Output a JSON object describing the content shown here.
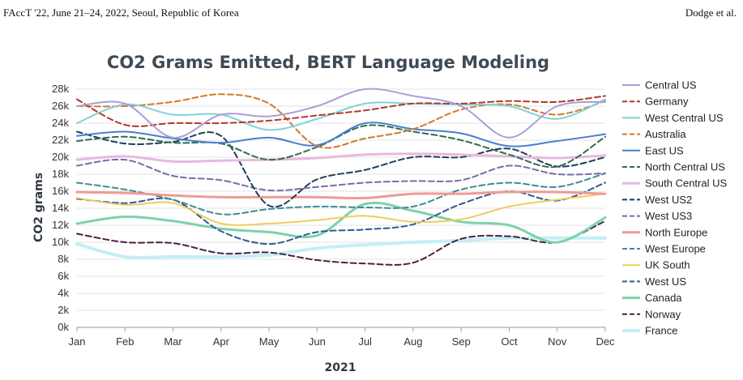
{
  "header": {
    "left": "FAccT '22, June 21–24, 2022, Seoul, Republic of Korea",
    "right": "Dodge et al."
  },
  "chart_data": {
    "type": "line",
    "title": "CO2 Grams Emitted, BERT Language Modeling",
    "xlabel": "2021",
    "ylabel": "CO2 grams",
    "categories": [
      "Jan",
      "Feb",
      "Mar",
      "Apr",
      "May",
      "Jun",
      "Jul",
      "Aug",
      "Sep",
      "Oct",
      "Nov",
      "Dec"
    ],
    "ylim": [
      0,
      28000
    ],
    "yticks": [
      0,
      2000,
      4000,
      6000,
      8000,
      10000,
      12000,
      14000,
      16000,
      18000,
      20000,
      22000,
      24000,
      26000,
      28000
    ],
    "ytick_labels": [
      "0k",
      "2k",
      "4k",
      "6k",
      "8k",
      "10k",
      "12k",
      "14k",
      "16k",
      "18k",
      "20k",
      "22k",
      "24k",
      "26k",
      "28k"
    ],
    "grid": true,
    "legend_position": "right",
    "series": [
      {
        "name": "Central US",
        "color": "#a99fd6",
        "dash": false,
        "width": 2,
        "values": [
          26000,
          26300,
          22300,
          25000,
          24800,
          26000,
          28000,
          27200,
          26000,
          22300,
          26000,
          26500
        ]
      },
      {
        "name": "Germany",
        "color": "#b03a2e",
        "dash": true,
        "width": 2,
        "values": [
          26800,
          23800,
          24000,
          24000,
          24300,
          24900,
          25500,
          26300,
          26300,
          26600,
          26500,
          27200
        ]
      },
      {
        "name": "West Central US",
        "color": "#7fd3d9",
        "dash": false,
        "width": 2,
        "values": [
          24000,
          26200,
          25000,
          25000,
          23200,
          24500,
          26300,
          26300,
          26200,
          26000,
          24500,
          26800
        ]
      },
      {
        "name": "Australia",
        "color": "#cf7a2d",
        "dash": true,
        "width": 2,
        "values": [
          26000,
          26000,
          26500,
          27400,
          26300,
          21300,
          22200,
          23300,
          25600,
          26200,
          25000,
          26600
        ]
      },
      {
        "name": "East US",
        "color": "#4a7fd1",
        "dash": false,
        "width": 2,
        "values": [
          22500,
          23000,
          22200,
          21700,
          22300,
          21400,
          24000,
          23300,
          22800,
          21300,
          21900,
          22700
        ]
      },
      {
        "name": "North Central US",
        "color": "#2f6e4f",
        "dash": true,
        "width": 2,
        "values": [
          21900,
          22400,
          21700,
          21600,
          19700,
          21200,
          23700,
          23000,
          22000,
          20300,
          18900,
          22400
        ]
      },
      {
        "name": "South Central US",
        "color": "#e8b8e0",
        "dash": false,
        "width": 3,
        "values": [
          19700,
          20100,
          19500,
          19600,
          19700,
          19900,
          20300,
          20400,
          20300,
          20100,
          19900,
          20200
        ]
      },
      {
        "name": "West US2",
        "color": "#1f3f5b",
        "dash": true,
        "width": 2,
        "values": [
          23000,
          21600,
          21800,
          22500,
          14300,
          17400,
          18500,
          20000,
          20000,
          21000,
          18900,
          20000
        ]
      },
      {
        "name": "West US3",
        "color": "#7b6aa8",
        "dash": true,
        "width": 2,
        "values": [
          19000,
          19700,
          17800,
          17300,
          16100,
          16500,
          17000,
          17200,
          17300,
          19000,
          18000,
          18100
        ]
      },
      {
        "name": "North Europe",
        "color": "#ef9a96",
        "dash": false,
        "width": 3,
        "values": [
          15900,
          15800,
          15500,
          15300,
          15300,
          15300,
          15200,
          15700,
          15700,
          15900,
          15900,
          15700
        ]
      },
      {
        "name": "West Europe",
        "color": "#3e8d96",
        "dash": true,
        "width": 2,
        "values": [
          17000,
          16200,
          15000,
          13300,
          13900,
          14200,
          14100,
          14200,
          16200,
          17000,
          16500,
          18100
        ]
      },
      {
        "name": "UK South",
        "color": "#f0cc5e",
        "dash": false,
        "width": 2,
        "values": [
          15200,
          14400,
          14600,
          12200,
          12200,
          12600,
          13100,
          12400,
          12700,
          14200,
          15000,
          15700
        ]
      },
      {
        "name": "West US",
        "color": "#2e5b96",
        "dash": true,
        "width": 2,
        "values": [
          15100,
          14600,
          15000,
          11300,
          9800,
          11200,
          11500,
          12100,
          14500,
          16000,
          14900,
          17000
        ]
      },
      {
        "name": "Canada",
        "color": "#7fd1a7",
        "dash": false,
        "width": 3,
        "values": [
          12200,
          13000,
          12500,
          11600,
          11200,
          10800,
          14500,
          13700,
          12400,
          12000,
          10000,
          12900
        ]
      },
      {
        "name": "Norway",
        "color": "#4d2140",
        "dash": true,
        "width": 2,
        "values": [
          11000,
          10000,
          9900,
          8700,
          8800,
          7900,
          7500,
          7600,
          10400,
          10700,
          10000,
          12500
        ]
      },
      {
        "name": "France",
        "color": "#c3eff6",
        "dash": false,
        "width": 4,
        "values": [
          9800,
          8300,
          8300,
          8300,
          8500,
          9300,
          9700,
          10000,
          10200,
          10500,
          10500,
          10500
        ]
      }
    ]
  }
}
